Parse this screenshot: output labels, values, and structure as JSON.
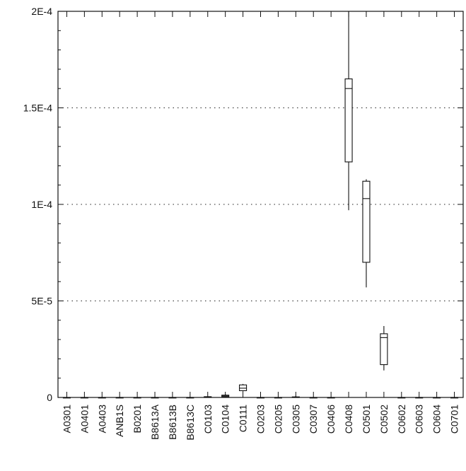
{
  "chart_data": {
    "type": "box",
    "title": "",
    "xlabel": "",
    "ylabel": "",
    "ylim": [
      0,
      0.0002
    ],
    "grid": "dotted horizontal",
    "y_ticks": [
      {
        "value": 0,
        "label": "0"
      },
      {
        "value": 5e-05,
        "label": "5E-5"
      },
      {
        "value": 0.0001,
        "label": "1E-4"
      },
      {
        "value": 0.00015,
        "label": "1.5E-4"
      },
      {
        "value": 0.0002,
        "label": "2E-4"
      }
    ],
    "categories": [
      "A0301",
      "A0401",
      "A0403",
      "ANB1S",
      "B0201",
      "B8613A",
      "B8613B",
      "B8613C",
      "C0103",
      "C0104",
      "C0111",
      "C0203",
      "C0205",
      "C0305",
      "C0307",
      "C0406",
      "C0408",
      "C0501",
      "C0502",
      "C0602",
      "C0603",
      "C0604",
      "C0701"
    ],
    "boxes": [
      {
        "category": "A0301",
        "min": 0,
        "q1": 0,
        "median": 0,
        "q3": 0,
        "max": 0
      },
      {
        "category": "A0401",
        "min": 0,
        "q1": 0,
        "median": 0,
        "q3": 0,
        "max": 0
      },
      {
        "category": "A0403",
        "min": 0,
        "q1": 0,
        "median": 0,
        "q3": 0,
        "max": 0
      },
      {
        "category": "ANB1S",
        "min": 0,
        "q1": 0,
        "median": 0,
        "q3": 0,
        "max": 0
      },
      {
        "category": "B0201",
        "min": 0,
        "q1": 0,
        "median": 0,
        "q3": 0,
        "max": 0
      },
      {
        "category": "B8613A",
        "min": 0,
        "q1": 0,
        "median": 0,
        "q3": 0,
        "max": 0
      },
      {
        "category": "B8613B",
        "min": 0,
        "q1": 0,
        "median": 0,
        "q3": 0,
        "max": 0
      },
      {
        "category": "B8613C",
        "min": 0,
        "q1": 0,
        "median": 0,
        "q3": 0,
        "max": 0
      },
      {
        "category": "C0103",
        "min": 0,
        "q1": 0,
        "median": 2e-07,
        "q3": 4e-07,
        "max": 6e-07
      },
      {
        "category": "C0104",
        "min": 0,
        "q1": 4e-07,
        "median": 8e-07,
        "q3": 1.2e-06,
        "max": 1.6e-06
      },
      {
        "category": "C0111",
        "min": 3e-06,
        "q1": 3.5e-06,
        "median": 4.8e-06,
        "q3": 6.5e-06,
        "max": 7e-06
      },
      {
        "category": "C0203",
        "min": 0,
        "q1": 0,
        "median": 0,
        "q3": 0,
        "max": 0
      },
      {
        "category": "C0205",
        "min": 0,
        "q1": 0,
        "median": 0,
        "q3": 0,
        "max": 0
      },
      {
        "category": "C0305",
        "min": 0,
        "q1": 0,
        "median": 0,
        "q3": 3e-07,
        "max": 8e-07
      },
      {
        "category": "C0307",
        "min": 0,
        "q1": 0,
        "median": 0,
        "q3": 0,
        "max": 0
      },
      {
        "category": "C0406",
        "min": 0,
        "q1": 0,
        "median": 0,
        "q3": 0,
        "max": 0
      },
      {
        "category": "C0408",
        "min": 9.7e-05,
        "q1": 0.000122,
        "median": 0.00016,
        "q3": 0.000165,
        "max": 0.0002
      },
      {
        "category": "C0501",
        "min": 5.7e-05,
        "q1": 7e-05,
        "median": 0.000103,
        "q3": 0.000112,
        "max": 0.000113
      },
      {
        "category": "C0502",
        "min": 1.4e-05,
        "q1": 1.7e-05,
        "median": 3.1e-05,
        "q3": 3.3e-05,
        "max": 3.7e-05
      },
      {
        "category": "C0602",
        "min": 0,
        "q1": 0,
        "median": 0,
        "q3": 0,
        "max": 0
      },
      {
        "category": "C0603",
        "min": 0,
        "q1": 0,
        "median": 0,
        "q3": 0,
        "max": 0
      },
      {
        "category": "C0604",
        "min": 0,
        "q1": 0,
        "median": 0,
        "q3": 0,
        "max": 0
      },
      {
        "category": "C0701",
        "min": 0,
        "q1": 0,
        "median": 0,
        "q3": 0,
        "max": 0
      }
    ]
  }
}
